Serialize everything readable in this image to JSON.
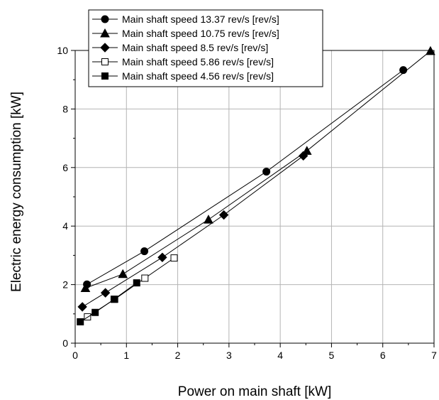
{
  "chart_data": {
    "type": "line",
    "xlabel": "Power on main shaft [kW]",
    "ylabel": "Electric energy consumption [kW]",
    "xlim": [
      0,
      7
    ],
    "ylim": [
      0,
      10
    ],
    "xticks": [
      0,
      1,
      2,
      3,
      4,
      5,
      6,
      7
    ],
    "yticks": [
      0,
      2,
      4,
      6,
      8,
      10
    ],
    "grid": true,
    "legend_position": "top-left",
    "series": [
      {
        "name": "Main shaft speed 13.37 rev/s [rev/s]",
        "marker": "circle",
        "filled": true,
        "points": [
          [
            0.23,
            2.01
          ],
          [
            1.35,
            3.14
          ],
          [
            3.73,
            5.86
          ],
          [
            6.4,
            9.33
          ]
        ]
      },
      {
        "name": "Main shaft speed 10.75 rev/s [rev/s]",
        "marker": "triangle",
        "filled": true,
        "points": [
          [
            0.2,
            1.88
          ],
          [
            0.93,
            2.36
          ],
          [
            2.6,
            4.22
          ],
          [
            4.52,
            6.57
          ],
          [
            6.93,
            9.98
          ]
        ]
      },
      {
        "name": "Main shaft speed 8.5 rev/s [rev/s]",
        "marker": "diamond",
        "filled": true,
        "points": [
          [
            0.14,
            1.24
          ],
          [
            0.59,
            1.72
          ],
          [
            1.7,
            2.93
          ],
          [
            2.9,
            4.38
          ],
          [
            4.45,
            6.4
          ]
        ]
      },
      {
        "name": "Main shaft speed 5.86 rev/s [rev/s]",
        "marker": "square",
        "filled": false,
        "points": [
          [
            0.24,
            0.9
          ],
          [
            0.77,
            1.5
          ],
          [
            1.36,
            2.22
          ],
          [
            1.93,
            2.91
          ]
        ]
      },
      {
        "name": "Main shaft speed 4.56 rev/s [rev/s]",
        "marker": "square",
        "filled": true,
        "points": [
          [
            0.1,
            0.73
          ],
          [
            0.39,
            1.05
          ],
          [
            0.76,
            1.5
          ],
          [
            1.2,
            2.06
          ]
        ]
      }
    ]
  }
}
